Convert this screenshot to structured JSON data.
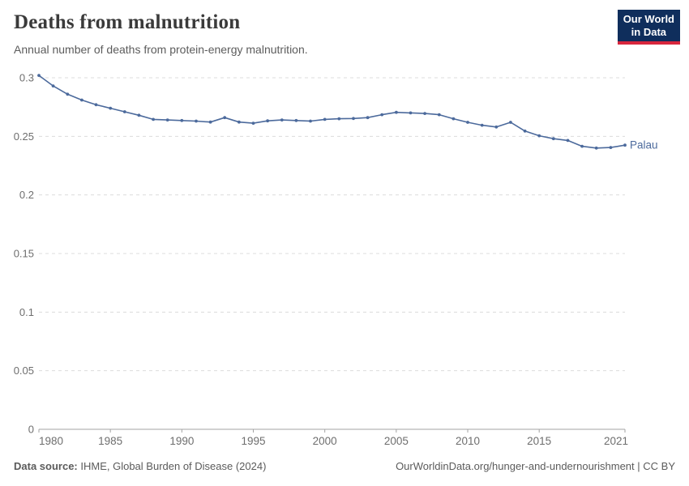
{
  "colors": {
    "line": "#4C6A9C",
    "grid": "#dcdcdc",
    "axis": "#a3a3a3",
    "tick_label": "#6e6e6e",
    "logo_bg": "#0f2e5c",
    "logo_stripe": "#d7263d"
  },
  "header": {
    "title": "Deaths from malnutrition",
    "subtitle": "Annual number of deaths from protein-energy malnutrition.",
    "logo": {
      "line1": "Our World",
      "line2": "in Data"
    }
  },
  "chart_data": {
    "type": "line",
    "title": "Deaths from malnutrition",
    "subtitle": "Annual number of deaths from protein-energy malnutrition.",
    "xlabel": "",
    "ylabel": "",
    "xlim": [
      1980,
      2021
    ],
    "ylim": [
      0,
      0.3
    ],
    "grid": true,
    "legend_position": "end-of-line",
    "x_ticks": [
      1980,
      1985,
      1990,
      1995,
      2000,
      2005,
      2010,
      2015,
      2021
    ],
    "y_ticks": [
      0,
      0.05,
      0.1,
      0.15,
      0.2,
      0.25,
      0.3
    ],
    "y_tick_labels": [
      "0",
      "0.05",
      "0.1",
      "0.15",
      "0.2",
      "0.25",
      "0.3"
    ],
    "series": [
      {
        "name": "Palau",
        "color": "#4C6A9C",
        "x": [
          1980,
          1981,
          1982,
          1983,
          1984,
          1985,
          1986,
          1987,
          1988,
          1989,
          1990,
          1991,
          1992,
          1993,
          1994,
          1995,
          1996,
          1997,
          1998,
          1999,
          2000,
          2001,
          2002,
          2003,
          2004,
          2005,
          2006,
          2007,
          2008,
          2009,
          2010,
          2011,
          2012,
          2013,
          2014,
          2015,
          2016,
          2017,
          2018,
          2019,
          2020,
          2021
        ],
        "values": [
          0.302,
          0.293,
          0.286,
          0.281,
          0.277,
          0.274,
          0.271,
          0.268,
          0.2645,
          0.264,
          0.2635,
          0.263,
          0.2622,
          0.266,
          0.2622,
          0.2612,
          0.2632,
          0.264,
          0.2635,
          0.263,
          0.2645,
          0.265,
          0.2652,
          0.266,
          0.2685,
          0.2705,
          0.27,
          0.2695,
          0.2685,
          0.265,
          0.262,
          0.2595,
          0.258,
          0.262,
          0.2545,
          0.2505,
          0.248,
          0.2465,
          0.2415,
          0.24,
          0.2405,
          0.2425
        ]
      }
    ]
  },
  "footer": {
    "source_label": "Data source:",
    "source_text": "IHME, Global Burden of Disease (2024)",
    "url": "OurWorldinData.org/hunger-and-undernourishment",
    "separator": " | ",
    "license": "CC BY"
  }
}
